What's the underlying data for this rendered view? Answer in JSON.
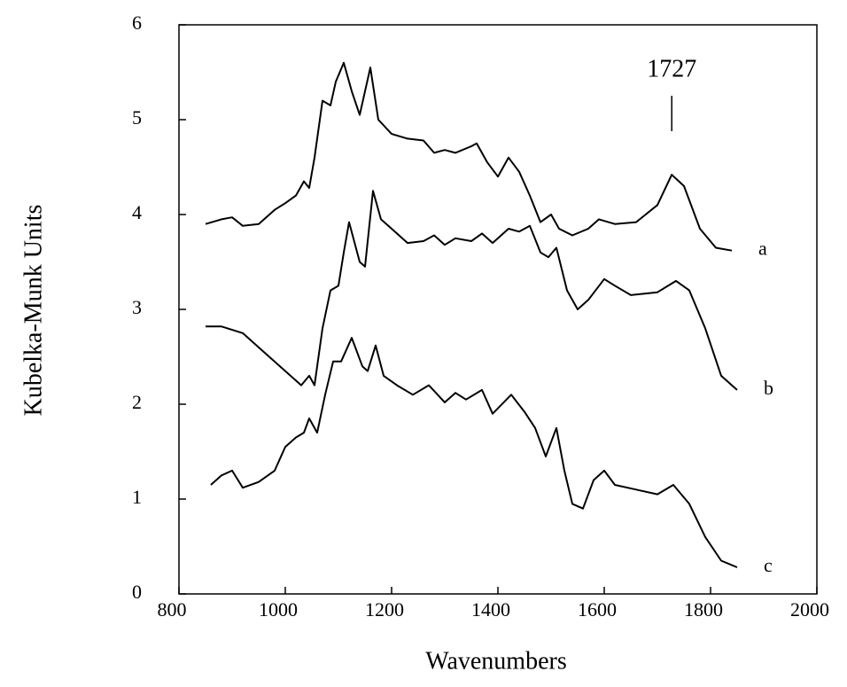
{
  "chart_data": {
    "type": "line",
    "xlabel": "Wavenumbers",
    "ylabel": "Kubelka-Munk Units",
    "xlim": [
      800,
      2000
    ],
    "ylim": [
      0,
      6
    ],
    "xticks": [
      800,
      1000,
      1200,
      1400,
      1600,
      1800,
      2000
    ],
    "yticks": [
      0,
      1,
      2,
      3,
      4,
      5,
      6
    ],
    "grid": false,
    "annotation": {
      "text": "1727",
      "x": 1727
    },
    "series": [
      {
        "name": "a",
        "color": "#000000",
        "x": [
          850,
          880,
          900,
          920,
          950,
          980,
          1000,
          1020,
          1035,
          1045,
          1055,
          1070,
          1085,
          1095,
          1110,
          1125,
          1140,
          1160,
          1175,
          1200,
          1230,
          1260,
          1280,
          1300,
          1320,
          1350,
          1360,
          1380,
          1400,
          1420,
          1440,
          1460,
          1480,
          1500,
          1515,
          1540,
          1570,
          1590,
          1620,
          1660,
          1700,
          1727,
          1750,
          1780,
          1810,
          1840
        ],
        "values": [
          3.9,
          3.95,
          3.97,
          3.88,
          3.9,
          4.05,
          4.12,
          4.2,
          4.35,
          4.28,
          4.6,
          5.2,
          5.15,
          5.4,
          5.6,
          5.3,
          5.05,
          5.55,
          5.0,
          4.85,
          4.8,
          4.78,
          4.65,
          4.68,
          4.65,
          4.72,
          4.75,
          4.55,
          4.4,
          4.6,
          4.45,
          4.2,
          3.92,
          4.0,
          3.85,
          3.78,
          3.85,
          3.95,
          3.9,
          3.92,
          4.1,
          4.42,
          4.3,
          3.85,
          3.65,
          3.62
        ]
      },
      {
        "name": "b",
        "color": "#000000",
        "x": [
          850,
          880,
          920,
          960,
          1000,
          1030,
          1045,
          1055,
          1070,
          1085,
          1100,
          1110,
          1120,
          1140,
          1150,
          1165,
          1180,
          1200,
          1230,
          1260,
          1280,
          1300,
          1320,
          1350,
          1370,
          1390,
          1420,
          1440,
          1460,
          1480,
          1495,
          1510,
          1530,
          1550,
          1570,
          1600,
          1620,
          1650,
          1700,
          1735,
          1760,
          1790,
          1820,
          1840,
          1850
        ],
        "values": [
          2.82,
          2.82,
          2.75,
          2.55,
          2.35,
          2.2,
          2.3,
          2.2,
          2.8,
          3.2,
          3.25,
          3.6,
          3.92,
          3.5,
          3.45,
          4.25,
          3.95,
          3.85,
          3.7,
          3.72,
          3.78,
          3.68,
          3.75,
          3.72,
          3.8,
          3.7,
          3.85,
          3.82,
          3.88,
          3.6,
          3.55,
          3.65,
          3.2,
          3.0,
          3.1,
          3.32,
          3.25,
          3.15,
          3.18,
          3.3,
          3.2,
          2.8,
          2.3,
          2.2,
          2.15
        ]
      },
      {
        "name": "c",
        "color": "#000000",
        "x": [
          860,
          880,
          900,
          920,
          950,
          980,
          1000,
          1020,
          1035,
          1045,
          1060,
          1075,
          1090,
          1105,
          1125,
          1145,
          1155,
          1170,
          1185,
          1210,
          1240,
          1270,
          1300,
          1320,
          1340,
          1370,
          1390,
          1425,
          1450,
          1470,
          1490,
          1500,
          1510,
          1525,
          1540,
          1560,
          1580,
          1600,
          1620,
          1660,
          1700,
          1730,
          1760,
          1790,
          1820,
          1850
        ],
        "values": [
          1.15,
          1.25,
          1.3,
          1.12,
          1.18,
          1.3,
          1.55,
          1.65,
          1.7,
          1.85,
          1.7,
          2.1,
          2.45,
          2.45,
          2.7,
          2.4,
          2.35,
          2.62,
          2.3,
          2.2,
          2.1,
          2.2,
          2.02,
          2.12,
          2.05,
          2.15,
          1.9,
          2.1,
          1.92,
          1.75,
          1.45,
          1.6,
          1.75,
          1.3,
          0.95,
          0.9,
          1.2,
          1.3,
          1.15,
          1.1,
          1.05,
          1.15,
          0.95,
          0.6,
          0.35,
          0.28
        ]
      }
    ]
  }
}
